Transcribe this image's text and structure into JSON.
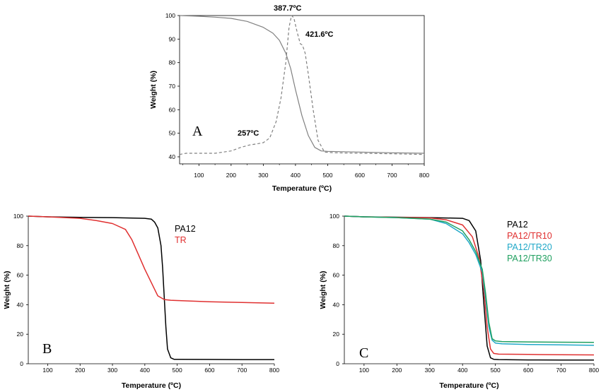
{
  "chart_data": [
    {
      "panel": "A",
      "type": "line",
      "xlabel": "Temperature (ºC)",
      "ylabel": "Weight (%)",
      "xlim": [
        40,
        800
      ],
      "ylim": [
        37,
        100
      ],
      "xticks": [
        100,
        200,
        300,
        400,
        500,
        600,
        700,
        800
      ],
      "yticks": [
        40,
        50,
        60,
        70,
        80,
        90,
        100
      ],
      "grid": false,
      "annotations": [
        {
          "text": "387.7ºC",
          "x": 387.7,
          "y": 100
        },
        {
          "text": "421.6ºC",
          "x": 421.6,
          "y": 87
        },
        {
          "text": "257ºC",
          "x": 257,
          "y": 45
        }
      ],
      "series": [
        {
          "style": "solid",
          "color": "#808080",
          "x": [
            40,
            100,
            150,
            200,
            250,
            300,
            330,
            350,
            370,
            385,
            400,
            420,
            440,
            460,
            480,
            500,
            600,
            700,
            800
          ],
          "y": [
            100,
            99.7,
            99.3,
            98.8,
            97.5,
            95,
            92.5,
            89.5,
            84,
            77.5,
            68.5,
            57.5,
            49,
            44,
            42.5,
            42.3,
            42,
            41.7,
            41.5
          ]
        },
        {
          "style": "dashed",
          "color": "#808080",
          "x": [
            40,
            60,
            100,
            150,
            200,
            230,
            257,
            280,
            300,
            320,
            340,
            355,
            370,
            380,
            387.7,
            395,
            405,
            415,
            421.6,
            430,
            440,
            455,
            470,
            490,
            520,
            600,
            700,
            800
          ],
          "y": [
            41,
            41.5,
            41.5,
            41.5,
            42.5,
            44,
            45,
            45.5,
            46,
            48,
            55,
            65,
            80,
            95,
            100,
            99,
            93,
            88,
            87.5,
            84,
            75,
            60,
            47,
            42,
            41.7,
            41.5,
            41.3,
            41
          ]
        }
      ]
    },
    {
      "panel": "B",
      "type": "line",
      "xlabel": "Temperature (ºC)",
      "ylabel": "Weight (%)",
      "xlim": [
        40,
        800
      ],
      "ylim": [
        0,
        100
      ],
      "xticks": [
        100,
        200,
        300,
        400,
        500,
        600,
        700,
        800
      ],
      "yticks": [
        0,
        20,
        40,
        60,
        80,
        100
      ],
      "grid": false,
      "legend_position": "top-right",
      "series": [
        {
          "name": "PA12",
          "color": "#000000",
          "x": [
            40,
            100,
            200,
            300,
            400,
            420,
            430,
            440,
            450,
            455,
            460,
            465,
            470,
            480,
            490,
            500,
            600,
            700,
            800
          ],
          "y": [
            100,
            99.5,
            99.2,
            99,
            98.5,
            98,
            96,
            92,
            80,
            65,
            45,
            25,
            10,
            4,
            3,
            3,
            2.9,
            2.8,
            2.8
          ]
        },
        {
          "name": "TR",
          "color": "#e03030",
          "x": [
            40,
            100,
            200,
            250,
            300,
            340,
            360,
            380,
            400,
            420,
            440,
            460,
            480,
            500,
            600,
            700,
            800
          ],
          "y": [
            100,
            99.5,
            98.5,
            97,
            95,
            91,
            84,
            74,
            64,
            55,
            46,
            43.5,
            43,
            42.8,
            42,
            41.5,
            41
          ]
        }
      ]
    },
    {
      "panel": "C",
      "type": "line",
      "xlabel": "Temperature (ºC)",
      "ylabel": "Weight (%)",
      "xlim": [
        40,
        800
      ],
      "ylim": [
        0,
        100
      ],
      "xticks": [
        100,
        200,
        300,
        400,
        500,
        600,
        700,
        800
      ],
      "yticks": [
        0,
        20,
        40,
        60,
        80,
        100
      ],
      "grid": false,
      "legend_position": "top-right",
      "series": [
        {
          "name": "PA12",
          "color": "#000000",
          "x": [
            40,
            100,
            200,
            300,
            400,
            420,
            440,
            455,
            465,
            475,
            485,
            495,
            510,
            600,
            700,
            800
          ],
          "y": [
            100,
            99.5,
            99.3,
            99,
            98.5,
            97,
            90,
            70,
            40,
            12,
            4,
            3,
            2.8,
            2.6,
            2.5,
            2.5
          ]
        },
        {
          "name": "PA12/TR10",
          "color": "#e03030",
          "x": [
            40,
            100,
            200,
            300,
            350,
            400,
            430,
            450,
            465,
            475,
            485,
            495,
            510,
            600,
            700,
            800
          ],
          "y": [
            100,
            99.5,
            99.2,
            98.8,
            97.5,
            94,
            86,
            72,
            50,
            25,
            10,
            7,
            6.5,
            6.3,
            6.1,
            6
          ]
        },
        {
          "name": "PA12/TR20",
          "color": "#20a8c8",
          "x": [
            40,
            100,
            200,
            300,
            350,
            400,
            420,
            440,
            460,
            470,
            480,
            490,
            500,
            520,
            600,
            700,
            800
          ],
          "y": [
            100,
            99.5,
            99,
            98,
            95,
            88,
            82,
            74,
            62,
            45,
            25,
            16,
            14,
            13.5,
            13,
            12.8,
            12.5
          ]
        },
        {
          "name": "PA12/TR30",
          "color": "#20a060",
          "x": [
            40,
            100,
            200,
            300,
            350,
            400,
            420,
            440,
            460,
            470,
            480,
            490,
            500,
            520,
            600,
            700,
            800
          ],
          "y": [
            100,
            99.5,
            99,
            98,
            96,
            90,
            84,
            76,
            64,
            48,
            28,
            17,
            15.5,
            15,
            14.8,
            14.6,
            14.5
          ]
        }
      ]
    }
  ],
  "panel_letters": {
    "a": "A",
    "b": "B",
    "c": "C"
  }
}
